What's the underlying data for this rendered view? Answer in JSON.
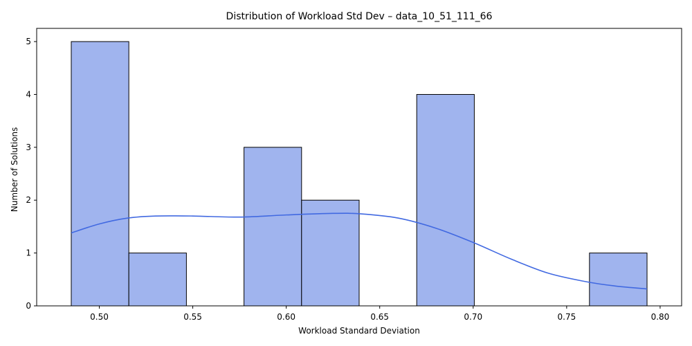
{
  "chart_data": {
    "type": "bar",
    "title": "Distribution of Workload Std Dev – data_10_51_111_66",
    "xlabel": "Workload Standard Deviation",
    "ylabel": "Number of Solutions",
    "xlim": [
      0.4665,
      0.8115
    ],
    "ylim": [
      0,
      5.25
    ],
    "xticks": [
      "0.50",
      "0.55",
      "0.60",
      "0.65",
      "0.70",
      "0.75",
      "0.80"
    ],
    "xtick_values": [
      0.5,
      0.55,
      0.6,
      0.65,
      0.7,
      0.75,
      0.8
    ],
    "yticks": [
      "0",
      "1",
      "2",
      "3",
      "4",
      "5"
    ],
    "ytick_values": [
      0,
      1,
      2,
      3,
      4,
      5
    ],
    "bins": [
      {
        "x0": 0.485,
        "x1": 0.5158,
        "count": 5
      },
      {
        "x0": 0.5158,
        "x1": 0.5466,
        "count": 1
      },
      {
        "x0": 0.5466,
        "x1": 0.5774,
        "count": 0
      },
      {
        "x0": 0.5774,
        "x1": 0.6082,
        "count": 3
      },
      {
        "x0": 0.6082,
        "x1": 0.639,
        "count": 2
      },
      {
        "x0": 0.639,
        "x1": 0.6698,
        "count": 0
      },
      {
        "x0": 0.6698,
        "x1": 0.7006,
        "count": 4
      },
      {
        "x0": 0.7006,
        "x1": 0.7314,
        "count": 0
      },
      {
        "x0": 0.7314,
        "x1": 0.7622,
        "count": 0
      },
      {
        "x0": 0.7622,
        "x1": 0.793,
        "count": 1
      }
    ],
    "kde": {
      "x": [
        0.485,
        0.5,
        0.515,
        0.53,
        0.55,
        0.575,
        0.6,
        0.625,
        0.64,
        0.66,
        0.68,
        0.7,
        0.72,
        0.74,
        0.76,
        0.775,
        0.793
      ],
      "y": [
        1.38,
        1.55,
        1.66,
        1.7,
        1.7,
        1.68,
        1.72,
        1.75,
        1.74,
        1.66,
        1.47,
        1.2,
        0.89,
        0.62,
        0.46,
        0.38,
        0.32
      ]
    },
    "colors": {
      "bar_fill": "#a0b4ee",
      "bar_stroke": "#000000",
      "kde_line": "#4169e1",
      "axis": "#000000"
    },
    "grid": false,
    "legend": "none"
  }
}
